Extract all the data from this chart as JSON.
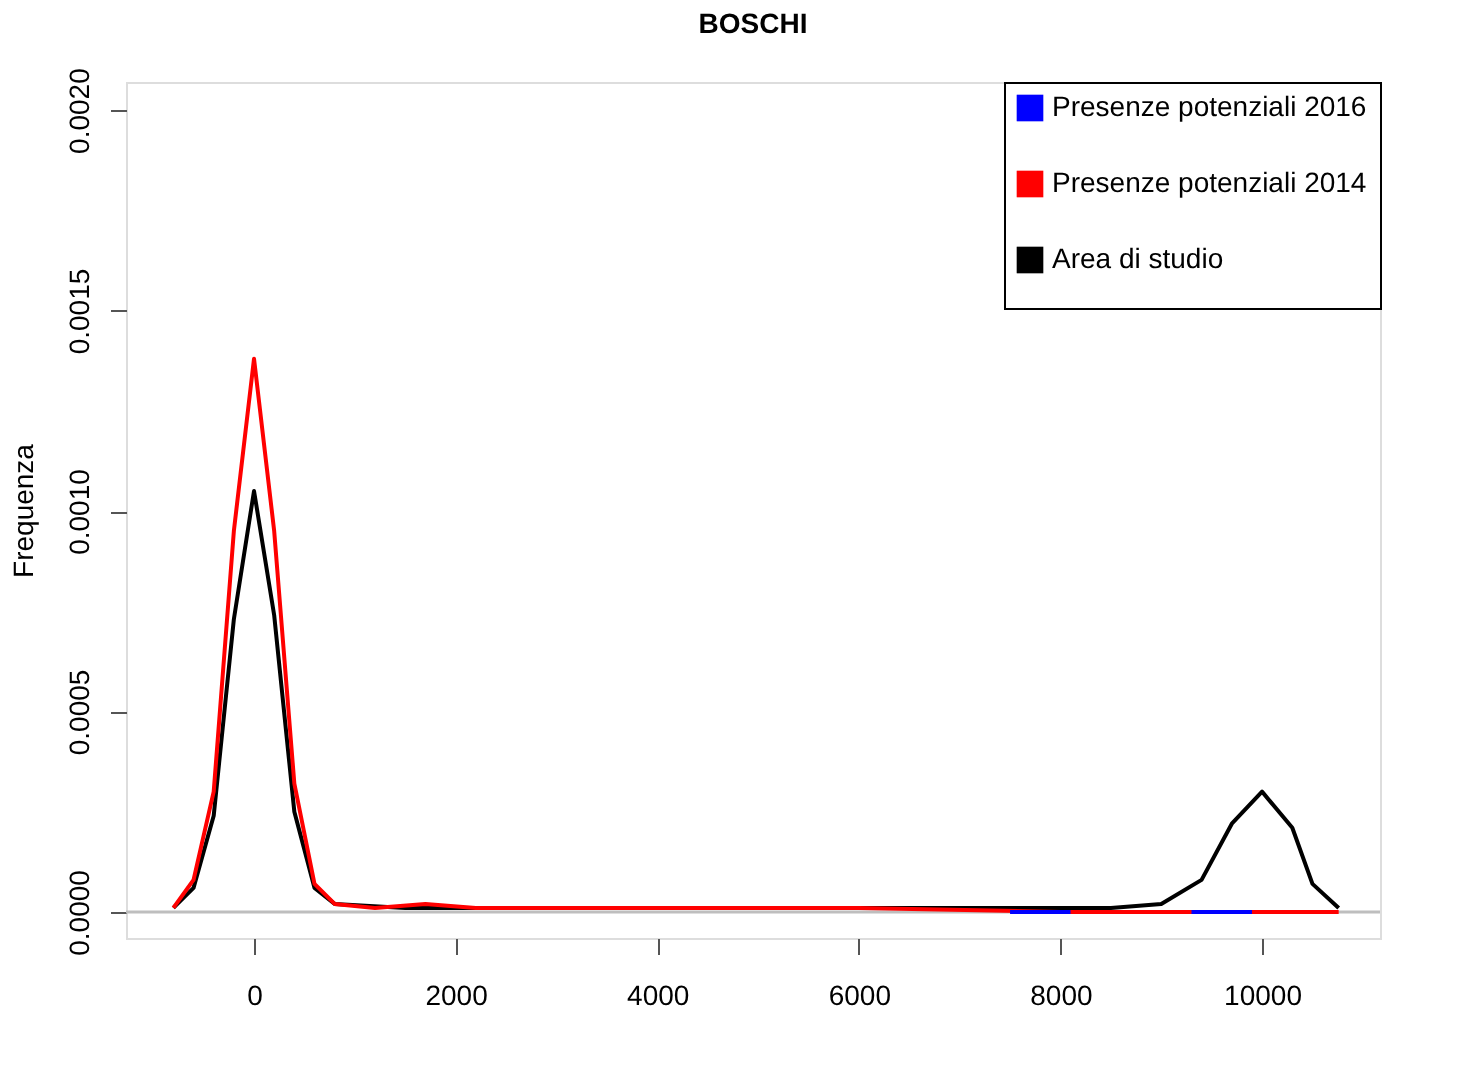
{
  "chart_data": {
    "type": "line",
    "title": "BOSCHI",
    "ylabel": "Frequenza",
    "xlim": [
      -1270,
      11170
    ],
    "ylim": [
      -6.5e-05,
      0.00207
    ],
    "xticks": [
      0,
      2000,
      4000,
      6000,
      8000,
      10000
    ],
    "yticks": [
      {
        "value": 0,
        "label": "0.0000"
      },
      {
        "value": 0.0005,
        "label": "0.0005"
      },
      {
        "value": 0.001,
        "label": "0.0010"
      },
      {
        "value": 0.0015,
        "label": "0.0015"
      },
      {
        "value": 0.002,
        "label": "0.0020"
      }
    ],
    "grid": false,
    "legend": "top right",
    "line_style": "solid",
    "marker": "none",
    "ref_lines": [
      {
        "axis": "y",
        "value": 0,
        "color": "#bebebe"
      }
    ],
    "series": [
      {
        "name": "Presenze potenziali 2016",
        "color": "#0000ff",
        "x": [
          7500,
          7800,
          8100,
          8300,
          9300,
          9600,
          9900
        ],
        "values": [
          0.0,
          0.0,
          0.0,
          null,
          0.0,
          0.0,
          0.0
        ]
      },
      {
        "name": "Presenze potenziali 2014",
        "color": "#ff0000",
        "x": [
          -800,
          -600,
          -400,
          -200,
          0,
          200,
          400,
          600,
          800,
          1200,
          1700,
          2200,
          4000,
          6000,
          8000,
          10000,
          10760
        ],
        "values": [
          1e-05,
          8e-05,
          0.0003,
          0.00095,
          0.00138,
          0.00095,
          0.00032,
          7e-05,
          2e-05,
          1e-05,
          2e-05,
          1e-05,
          1e-05,
          1e-05,
          0.0,
          0.0,
          0.0
        ]
      },
      {
        "name": "Area di studio",
        "color": "#000000",
        "x": [
          -800,
          -600,
          -400,
          -200,
          0,
          200,
          400,
          600,
          800,
          1500,
          4000,
          7000,
          8500,
          9000,
          9400,
          9700,
          10000,
          10300,
          10500,
          10760
        ],
        "values": [
          1e-05,
          6e-05,
          0.00024,
          0.00073,
          0.00105,
          0.00074,
          0.00025,
          6e-05,
          2e-05,
          1e-05,
          1e-05,
          1e-05,
          1e-05,
          2e-05,
          8e-05,
          0.00022,
          0.0003,
          0.00021,
          7e-05,
          1e-05
        ]
      }
    ]
  }
}
